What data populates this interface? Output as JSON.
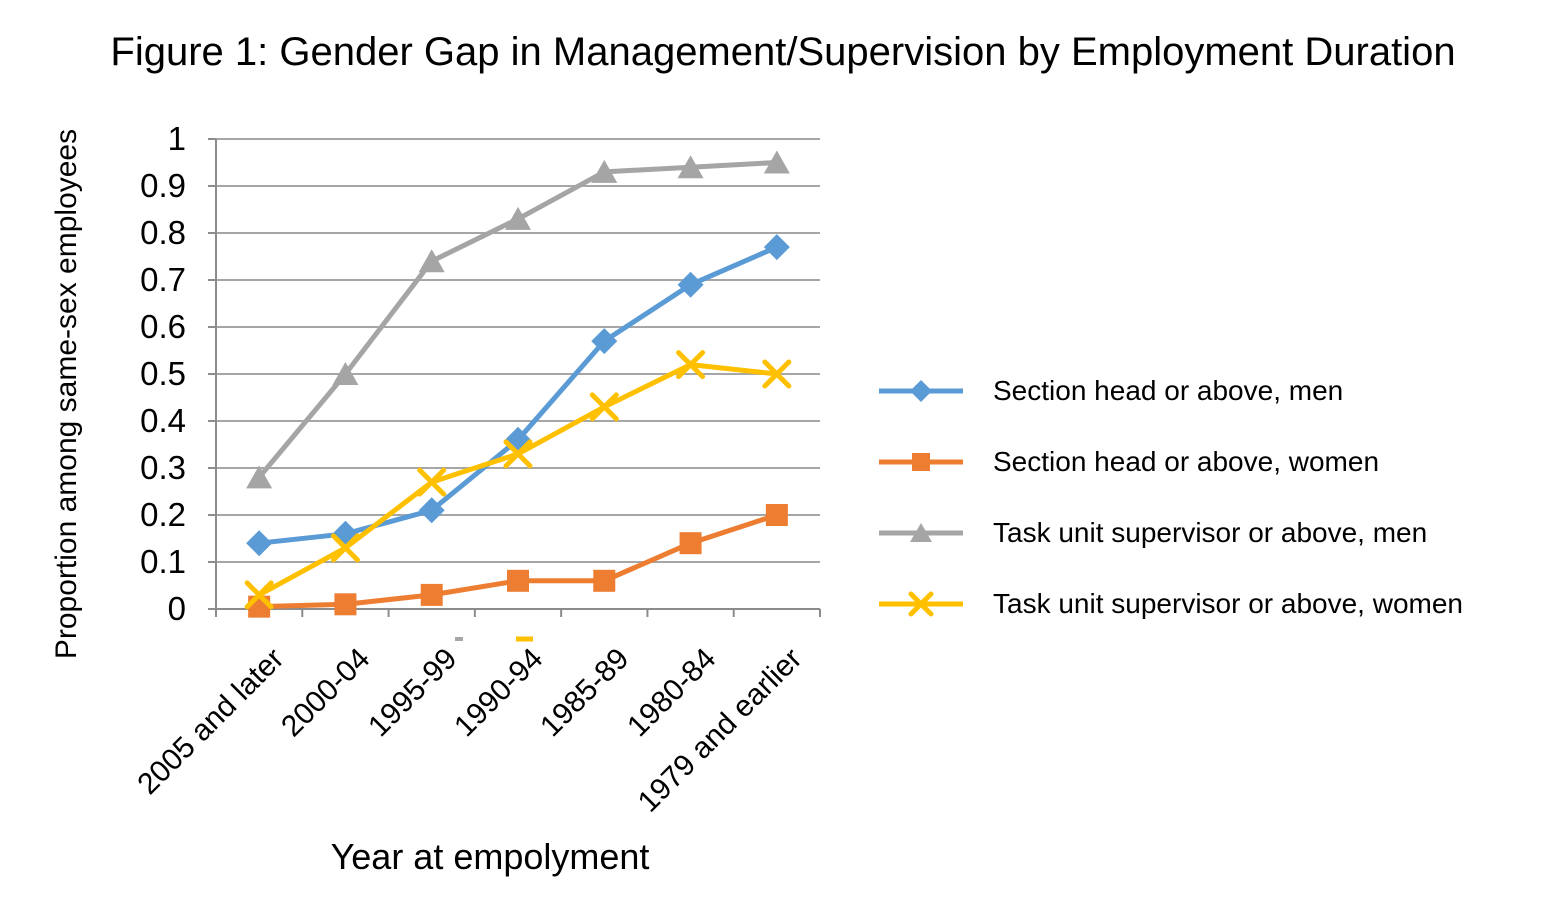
{
  "chart_data": {
    "type": "line",
    "title": "Figure 1: Gender Gap in Management/Supervision by Employment Duration",
    "xlabel": "Year at empolyment",
    "ylabel": "Proportion among same-sex employees",
    "categories": [
      "2005 and later",
      "2000-04",
      "1995-99",
      "1990-94",
      "1985-89",
      "1980-84",
      "1979 and earlier"
    ],
    "series": [
      {
        "name": "Section head or above, men",
        "marker": "diamond",
        "color": "#5B9BD5",
        "values": [
          0.14,
          0.16,
          0.21,
          0.36,
          0.57,
          0.69,
          0.77
        ]
      },
      {
        "name": "Section head or above, women",
        "marker": "square",
        "color": "#ED7D31",
        "values": [
          0.005,
          0.01,
          0.03,
          0.06,
          0.06,
          0.14,
          0.2
        ]
      },
      {
        "name": "Task unit supervisor or above, men",
        "marker": "triangle",
        "color": "#A5A5A5",
        "values": [
          0.28,
          0.5,
          0.74,
          0.83,
          0.93,
          0.94,
          0.95
        ]
      },
      {
        "name": "Task unit supervisor or above, women",
        "marker": "x",
        "color": "#FFC000",
        "values": [
          0.03,
          0.13,
          0.27,
          0.33,
          0.43,
          0.52,
          0.5
        ]
      }
    ],
    "ylim": [
      0,
      1
    ],
    "y_ticks": [
      "1",
      "0.9",
      "0.8",
      "0.7",
      "0.6",
      "0.5",
      "0.4",
      "0.3",
      "0.2",
      "0.1",
      "0"
    ],
    "grid": "horizontal",
    "legend_position": "right"
  },
  "colors": {
    "grid_line": "#A6A6A6",
    "axis_line": "#8C8C8C",
    "text": "#000000"
  }
}
